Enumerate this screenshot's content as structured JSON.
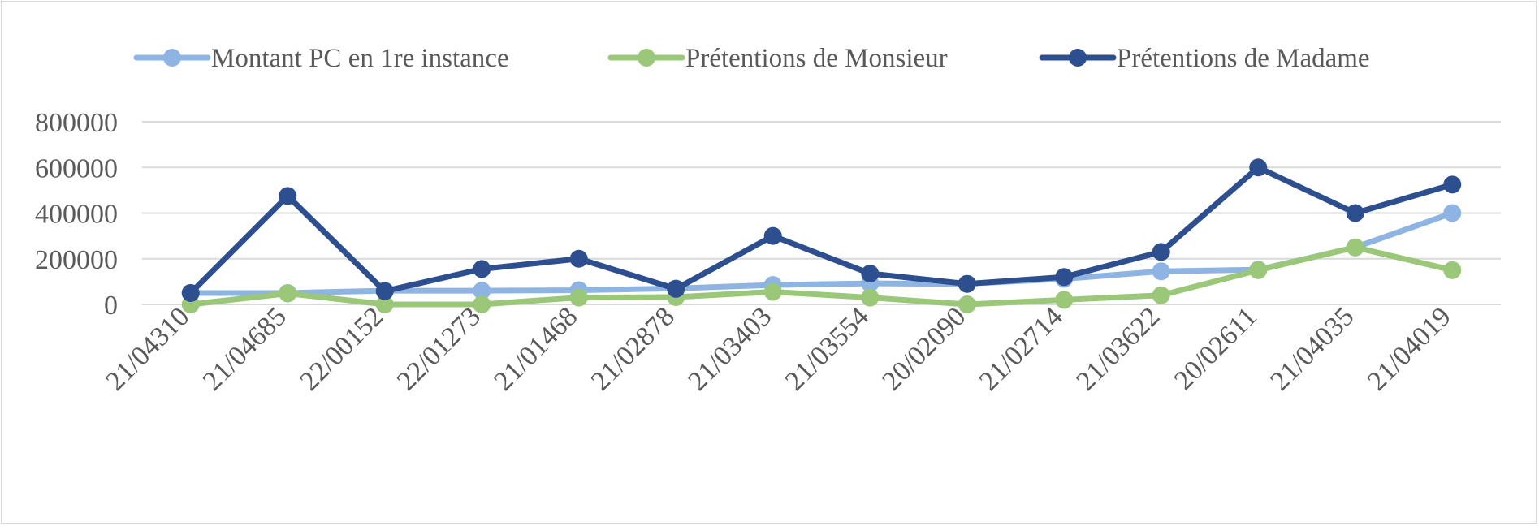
{
  "chart_data": {
    "type": "line",
    "title": "",
    "xlabel": "",
    "ylabel": "",
    "categories": [
      "21/04310",
      "21/04685",
      "22/00152",
      "22/01273",
      "21/01468",
      "21/02878",
      "21/03403",
      "21/03554",
      "20/02090",
      "21/02714",
      "21/03622",
      "20/02611",
      "21/04035",
      "21/04019"
    ],
    "yticks": [
      0,
      200000,
      400000,
      600000,
      800000
    ],
    "ylim": [
      0,
      800000
    ],
    "grid": true,
    "legend_position": "top",
    "series": [
      {
        "name": "Montant PC en 1re instance",
        "color": "#8db4e2",
        "values": [
          50000,
          50000,
          60000,
          60000,
          62000,
          70000,
          85000,
          92000,
          90000,
          112000,
          145000,
          152000,
          250000,
          400000
        ]
      },
      {
        "name": "Prétentions de Monsieur",
        "color": "#9bc878",
        "values": [
          0,
          48000,
          0,
          0,
          30000,
          32000,
          55000,
          30000,
          0,
          20000,
          40000,
          150000,
          250000,
          150000
        ]
      },
      {
        "name": "Prétentions de Madame",
        "color": "#2e4f8f",
        "values": [
          50000,
          475000,
          58000,
          155000,
          200000,
          68000,
          300000,
          135000,
          90000,
          120000,
          230000,
          600000,
          400000,
          525000
        ]
      }
    ]
  }
}
